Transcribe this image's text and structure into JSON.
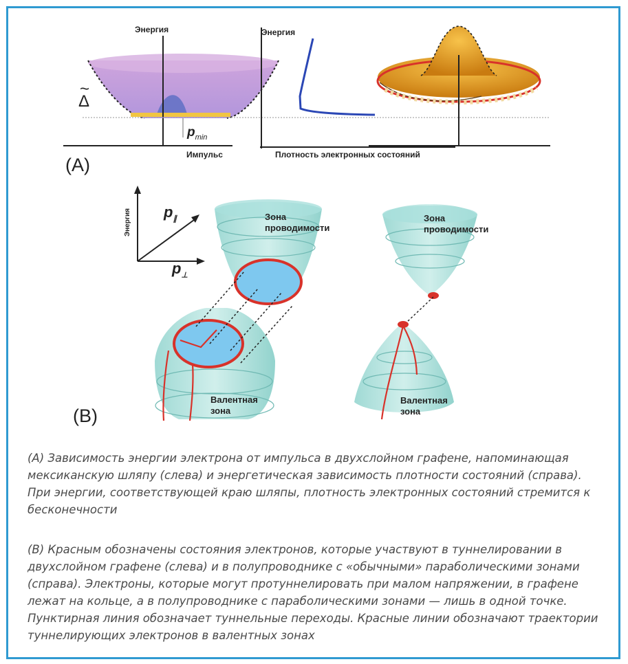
{
  "panelA": {
    "tag": "(A)",
    "energy_label_1": "Энергия",
    "energy_label_2": "Энергия",
    "delta_symbol": "Δ",
    "delta_tilde": "~",
    "pmin_p": "p",
    "pmin_sub": "min",
    "momentum_label": "Импульс",
    "dos_label": "Плотность электронных состояний"
  },
  "panelB": {
    "tag": "(B)",
    "axis_energy": "Энергия",
    "p_par": "p",
    "p_par_sub": "∥",
    "p_perp": "p",
    "p_perp_sub": "⊥",
    "left_conduction_1": "Зона",
    "left_conduction_2": "проводимости",
    "left_valence_1": "Валентная",
    "left_valence_2": "зона",
    "right_conduction_1": "Зона",
    "right_conduction_2": "проводимости",
    "right_valence_1": "Валентная",
    "right_valence_2": "зона"
  },
  "captions": {
    "a": "(A) Зависимость энергии электрона от импульса в двухслойном графене, напоминающая мексиканскую шляпу (слева) и энергетическая зависимость плотности состояний (справа). При энергии, соответствующей краю шляпы, плотность электронных состояний стремится к бесконечности",
    "b": "(B) Красным обозначены состояния электронов, которые участвуют в туннелировании в двухслойном графене (слева) и в полупроводнике с «обычными» параболическими зонами (справа). Электроны, которые могут протуннелировать при малом напряжении, в графене лежат на кольце, а в полупроводнике с параболическими зонами — лишь в одной точке. Пунктирная линия обозначает туннельные переходы. Красные линии обозначают траектории туннелирующих электронов в валентных зонах"
  },
  "colors": {
    "frame": "#2f9ad1",
    "purple_band": "#c79bd9",
    "dos_curve": "#2b47b5",
    "sombrero": "#e7a21a",
    "cone": "#9fd9d4",
    "ring": "#d8322a"
  }
}
